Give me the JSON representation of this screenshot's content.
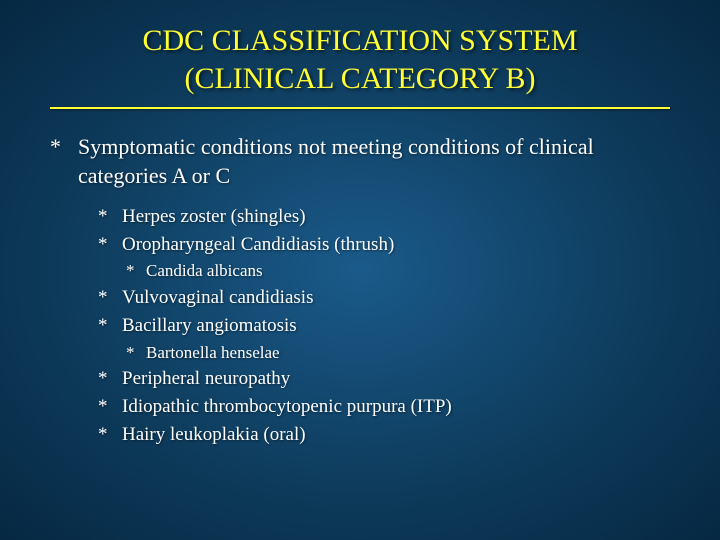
{
  "slide": {
    "background": {
      "gradient_center": "#1a5a8a",
      "gradient_mid": "#0d3a5a",
      "gradient_edge": "#062842"
    },
    "title": {
      "line1": "CDC CLASSIFICATION SYSTEM",
      "line2": "(CLINICAL CATEGORY B)",
      "color": "#ffff33",
      "fontsize": 30
    },
    "divider_color": "#ffff33",
    "bullet_char": "*",
    "text_color": "#ffffff",
    "main": {
      "text": "Symptomatic conditions not meeting conditions of clinical categories A or C",
      "fontsize": 22
    },
    "sub_fontsize": 19,
    "subsub_fontsize": 17,
    "items": [
      {
        "text": "Herpes zoster (shingles)"
      },
      {
        "text": "Oropharyngeal Candidiasis (thrush)",
        "children": [
          {
            "text": "Candida albicans"
          }
        ]
      },
      {
        "text": "Vulvovaginal candidiasis"
      },
      {
        "text": "Bacillary angiomatosis",
        "children": [
          {
            "text": "Bartonella henselae"
          }
        ]
      },
      {
        "text": "Peripheral neuropathy"
      },
      {
        "text": "Idiopathic thrombocytopenic purpura (ITP)"
      },
      {
        "text": "Hairy leukoplakia (oral)"
      }
    ]
  }
}
